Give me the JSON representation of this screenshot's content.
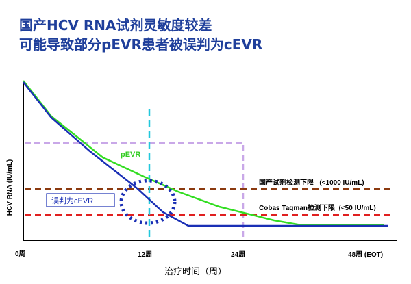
{
  "title_line1": "国产HCV RNA试剂灵敏度较差",
  "title_line2": "可能导致部分pEVR患者被误判为cEVR",
  "diagram": {
    "y_axis_label": "HCV RNA (IU/mL)",
    "x_axis_label": "治疗时间（周）",
    "x_ticks": [
      "0周",
      "12周",
      "24周",
      "48周 (EOT)"
    ],
    "series_labels": {
      "pevr": "pEVR",
      "misjudged": "误判为cEVR"
    },
    "threshold_labels": {
      "domestic": "国产试剂检测下限   (<1000 IU/mL)",
      "cobas": "Cobas Taqman检测下限  (<50 IU/mL)"
    },
    "colors": {
      "pevr_curve": "#33dd22",
      "blue_curve": "#1a2fb5",
      "domestic_threshold": "#8b3a10",
      "cobas_threshold": "#e02020",
      "week12_marker": "#22c8dd",
      "reference_box": "#c9a8e8",
      "highlight_circle": "#1a2fb5",
      "label_box_border": "#1a2fb5",
      "title": "#1f3f9b"
    }
  }
}
